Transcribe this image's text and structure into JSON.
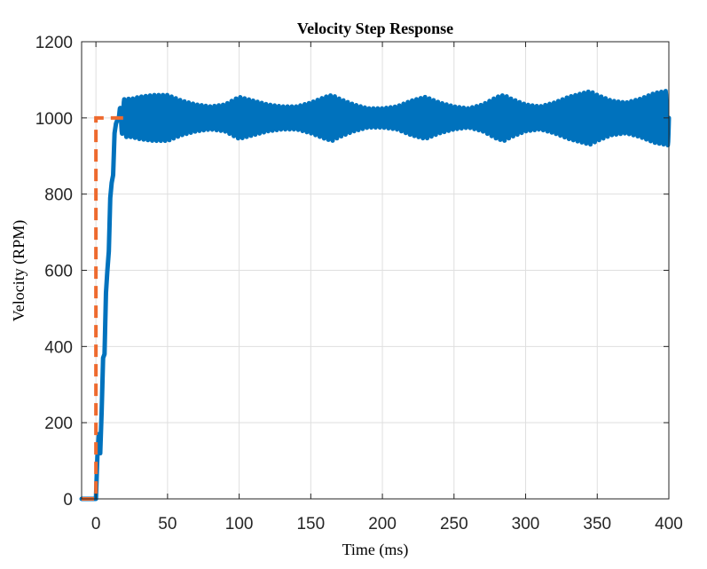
{
  "chart_data": {
    "type": "line",
    "title": "Velocity Step Response",
    "xlabel": "Time (ms)",
    "ylabel": "Velocity (RPM)",
    "xlim": [
      -10,
      400
    ],
    "ylim": [
      0,
      1200
    ],
    "grid": true,
    "x_ticks": [
      0,
      50,
      100,
      150,
      200,
      250,
      300,
      350,
      400
    ],
    "y_ticks": [
      0,
      200,
      400,
      600,
      800,
      1000,
      1200
    ],
    "x_tick_labels": [
      "0",
      "50",
      "100",
      "150",
      "200",
      "250",
      "300",
      "350",
      "400"
    ],
    "y_tick_labels": [
      "0",
      "200",
      "400",
      "600",
      "800",
      "1000",
      "1200"
    ],
    "series": [
      {
        "color": "#0072BD",
        "style": "solid",
        "oscillation_period_ms": 3,
        "x": [
          -10,
          0,
          1,
          2,
          3,
          4,
          5,
          6,
          7,
          8,
          9,
          10,
          11,
          12,
          13,
          14,
          15,
          16,
          17,
          18,
          19,
          20,
          25,
          30,
          40,
          50,
          60,
          70,
          80,
          90,
          100,
          110,
          120,
          130,
          140,
          150,
          160,
          165,
          170,
          180,
          190,
          200,
          210,
          220,
          230,
          240,
          250,
          260,
          270,
          280,
          285,
          290,
          300,
          310,
          320,
          330,
          340,
          345,
          350,
          360,
          370,
          380,
          390,
          400
        ],
        "center": [
          0,
          0,
          110,
          170,
          120,
          230,
          370,
          380,
          540,
          600,
          650,
          790,
          830,
          850,
          960,
          985,
          995,
          1000,
          1000,
          1000,
          1000,
          1000,
          1000,
          1000,
          1000,
          1000,
          1000,
          1000,
          1000,
          1000,
          1000,
          1000,
          1000,
          1000,
          1000,
          1000,
          1000,
          1000,
          1000,
          1000,
          1000,
          1000,
          1000,
          1000,
          1000,
          1000,
          1000,
          1000,
          1000,
          1000,
          1000,
          1000,
          1000,
          1000,
          1000,
          1000,
          1000,
          1000,
          1000,
          1000,
          1000,
          1000,
          1000,
          1000
        ],
        "amplitude": [
          0,
          0,
          0,
          0,
          0,
          0,
          0,
          0,
          0,
          0,
          0,
          0,
          0,
          0,
          0,
          0,
          0,
          10,
          30,
          40,
          45,
          50,
          50,
          55,
          60,
          60,
          45,
          35,
          30,
          35,
          55,
          45,
          35,
          30,
          30,
          40,
          55,
          60,
          50,
          35,
          25,
          25,
          30,
          45,
          55,
          40,
          30,
          25,
          35,
          55,
          60,
          50,
          35,
          30,
          40,
          55,
          65,
          70,
          60,
          45,
          40,
          50,
          65,
          72
        ]
      },
      {
        "color": "#EE6A2E",
        "style": "dashed",
        "x": [
          -10,
          0,
          0,
          20
        ],
        "values": [
          0,
          0,
          1000,
          1000
        ]
      }
    ]
  }
}
